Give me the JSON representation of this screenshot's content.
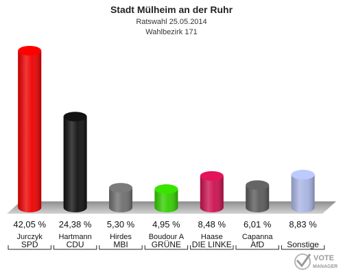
{
  "chart_data": {
    "type": "bar",
    "title": "Stadt Mülheim an der Ruhr",
    "subtitle": "Ratswahl 25.05.2014",
    "subtitle2": "Wahlbezirk 171",
    "ylim": [
      0,
      42.05
    ],
    "grid": false,
    "legend": "none",
    "bars": [
      {
        "candidate": "Jurczyk",
        "party": "SPD",
        "value": 42.05,
        "label": "42,05 %",
        "color": "#ee0000"
      },
      {
        "candidate": "Hartmann",
        "party": "CDU",
        "value": 24.38,
        "label": "24,38 %",
        "color": "#111111"
      },
      {
        "candidate": "Hirdes",
        "party": "MBI",
        "value": 5.3,
        "label": "5,30 %",
        "color": "#6e6e6e"
      },
      {
        "candidate": "Boudour A",
        "party": "GRÜNE",
        "value": 4.95,
        "label": "4,95 %",
        "color": "#33cc00"
      },
      {
        "candidate": "Haase",
        "party": "DIE LINKE",
        "value": 8.48,
        "label": "8,48 %",
        "color": "#cc1150"
      },
      {
        "candidate": "Capanna",
        "party": "AfD",
        "value": 6.01,
        "label": "6,01 %",
        "color": "#5a5a5a"
      },
      {
        "candidate": "",
        "party": "Sonstige",
        "value": 8.83,
        "label": "8,83 %",
        "color": "#a9b4e3"
      }
    ]
  },
  "logo": {
    "line1": "VOTE",
    "line2": "MANAGER"
  }
}
